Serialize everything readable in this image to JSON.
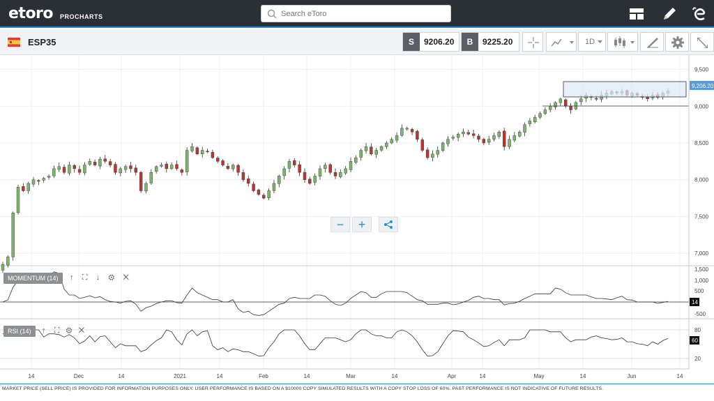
{
  "app": {
    "logo": "etoro",
    "logo_sub": "PROCHARTS",
    "search_placeholder": "Search eToro"
  },
  "instrument": {
    "symbol": "ESP35",
    "sell_letter": "S",
    "sell_price": "9206.20",
    "buy_letter": "B",
    "buy_price": "9225.20",
    "interval": "1D"
  },
  "colors": {
    "up": "#7cb46a",
    "down": "#b33a34",
    "accent": "#2a8cd8",
    "topbar": "#2b2f36"
  },
  "price_axis": {
    "ticks": [
      "9,500",
      "9,000",
      "8,500",
      "8,000",
      "7,500",
      "7,000"
    ],
    "last_price": "9,206.20"
  },
  "momentum": {
    "label": "MOMENTUM (14)",
    "ticks": [
      "1,500",
      "1,000",
      "500",
      "-500"
    ],
    "last_value": "14"
  },
  "rsi": {
    "label": "RSI (14)",
    "ticks": [
      "80",
      "20"
    ],
    "last_value": "60"
  },
  "time_axis": [
    "14",
    "Dec",
    "14",
    "2021",
    "14",
    "Feb",
    "14",
    "Mar",
    "14",
    "Apr",
    "14",
    "May",
    "14",
    "Jun",
    "14"
  ],
  "footer": "MARKET PRICE (SELL PRICE) IS PROVIDED FOR INFORMATION PURPOSES ONLY. USER PERFORMANCE IS BASED ON A $10000 COPY SIMULATED RESULTS WITH A COPY STOP LOSS OF 60%. PAST PERFORMANCE IS NOT INDICATIVE OF FUTURE RESULTS.",
  "chart_data": {
    "type": "candlestick",
    "ylim": [
      6850,
      9600
    ],
    "closes": [
      6850,
      6950,
      7550,
      7900,
      7850,
      7950,
      8000,
      7980,
      8020,
      8050,
      8150,
      8180,
      8100,
      8200,
      8150,
      8100,
      8200,
      8250,
      8200,
      8280,
      8250,
      8200,
      8100,
      8150,
      8180,
      8150,
      8100,
      7850,
      7950,
      8100,
      8180,
      8200,
      8150,
      8200,
      8150,
      8100,
      8400,
      8450,
      8350,
      8400,
      8380,
      8300,
      8250,
      8200,
      8150,
      8200,
      8100,
      8000,
      7950,
      7850,
      7800,
      7750,
      7850,
      7950,
      8050,
      8150,
      8250,
      8200,
      8100,
      8000,
      7950,
      8050,
      8150,
      8200,
      8100,
      8050,
      8100,
      8150,
      8250,
      8300,
      8400,
      8450,
      8350,
      8400,
      8450,
      8500,
      8550,
      8600,
      8700,
      8700,
      8650,
      8550,
      8400,
      8300,
      8350,
      8400,
      8500,
      8550,
      8580,
      8620,
      8650,
      8620,
      8600,
      8550,
      8500,
      8550,
      8600,
      8650,
      8450,
      8550,
      8600,
      8650,
      8750,
      8800,
      8850,
      8900,
      8950,
      9000,
      9050,
      9100,
      9000,
      8950,
      9050,
      9100,
      9150,
      9120,
      9100,
      9150,
      9180,
      9200,
      9180,
      9200,
      9150,
      9180,
      9150,
      9120,
      9100,
      9150,
      9120,
      9180,
      9206
    ]
  }
}
